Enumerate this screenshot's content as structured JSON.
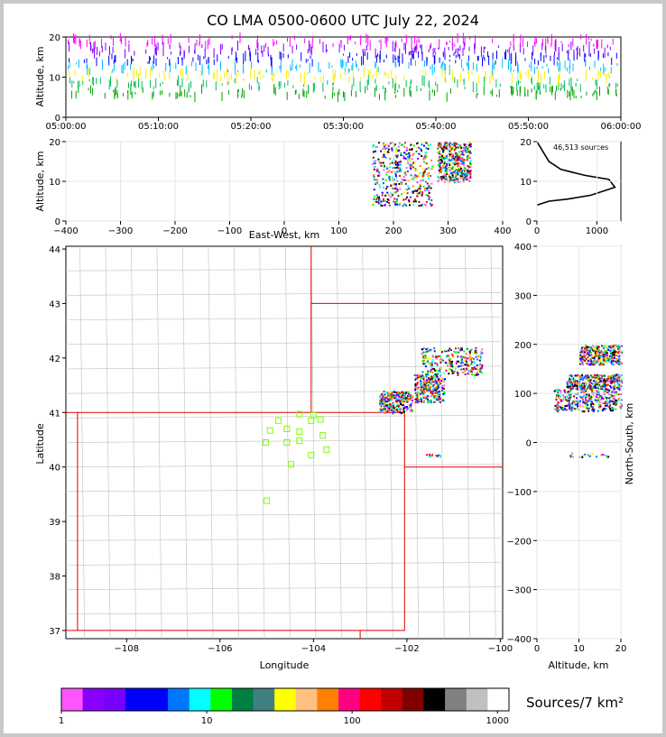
{
  "figure": {
    "title": "CO LMA 0500-0600 UTC July 22, 2024"
  },
  "chart_data": [
    {
      "id": "time-height",
      "type": "scatter",
      "title": "CO LMA 0500-0600 UTC July 22, 2024",
      "xlabel": "",
      "ylabel": "Altitude, km",
      "x_ticks": [
        "05:00:00",
        "05:10:00",
        "05:20:00",
        "05:30:00",
        "05:40:00",
        "05:50:00",
        "06:00:00"
      ],
      "xlim": [
        "05:00:00",
        "06:00:00"
      ],
      "ylim": [
        0,
        20
      ],
      "y_ticks": [
        0,
        10,
        20
      ],
      "description_of_density": "continuous sources between ~5 and 20 km across the whole hour"
    },
    {
      "id": "east-west-height",
      "type": "heatmap",
      "xlabel": "East-West, km",
      "ylabel": "Altitude, km",
      "xlim": [
        -400,
        400
      ],
      "x_ticks": [
        -400,
        -300,
        -200,
        -100,
        0,
        100,
        200,
        300,
        400
      ],
      "ylim": [
        0,
        20
      ],
      "y_ticks": [
        0,
        10,
        20
      ],
      "clusters": [
        {
          "x": [
            160,
            270
          ],
          "y": [
            4,
            20
          ]
        },
        {
          "x": [
            280,
            340
          ],
          "y": [
            10,
            20
          ]
        }
      ]
    },
    {
      "id": "altitude-histogram",
      "type": "line",
      "annotation": "46,513 sources",
      "xlim": [
        0,
        1400
      ],
      "x_ticks": [
        0,
        1000
      ],
      "ylim": [
        0,
        20
      ],
      "y_ticks": [
        0,
        10,
        20
      ],
      "profile": [
        [
          0,
          4
        ],
        [
          200,
          5
        ],
        [
          500,
          5.5
        ],
        [
          900,
          6.5
        ],
        [
          1300,
          8.5
        ],
        [
          1200,
          10.5
        ],
        [
          800,
          11.5
        ],
        [
          400,
          13
        ],
        [
          200,
          15
        ],
        [
          80,
          18
        ],
        [
          0,
          20
        ]
      ]
    },
    {
      "id": "plan-view",
      "type": "scatter",
      "xlabel": "Longitude",
      "ylabel": "Latitude",
      "xlim": [
        -109.3,
        -99.95
      ],
      "x_ticks": [
        -108,
        -106,
        -104,
        -102,
        -100
      ],
      "x_tick_labels": [
        "−108",
        "−106",
        "−104",
        "−102",
        "−100"
      ],
      "ylim": [
        36.85,
        44.05
      ],
      "y_ticks": [
        37,
        38,
        39,
        40,
        41,
        42,
        43,
        44
      ],
      "stations": [
        [
          -104.0,
          40.95
        ],
        [
          -104.05,
          40.85
        ],
        [
          -103.85,
          40.87
        ],
        [
          -104.3,
          40.97
        ],
        [
          -104.75,
          40.85
        ],
        [
          -104.57,
          40.7
        ],
        [
          -104.93,
          40.67
        ],
        [
          -104.3,
          40.65
        ],
        [
          -103.8,
          40.58
        ],
        [
          -104.3,
          40.48
        ],
        [
          -104.57,
          40.45
        ],
        [
          -105.02,
          40.45
        ],
        [
          -103.72,
          40.32
        ],
        [
          -104.05,
          40.22
        ],
        [
          -104.48,
          40.05
        ],
        [
          -105.0,
          39.38
        ]
      ],
      "lightning_regions": [
        {
          "lon": [
            -102.6,
            -101.9
          ],
          "lat": [
            41.0,
            41.4
          ]
        },
        {
          "lon": [
            -101.85,
            -101.2
          ],
          "lat": [
            41.2,
            41.7
          ]
        },
        {
          "lon": [
            -101.7,
            -100.4
          ],
          "lat": [
            41.7,
            42.2
          ]
        },
        {
          "lon": [
            -101.6,
            -101.3
          ],
          "lat": [
            40.2,
            40.25
          ]
        }
      ]
    },
    {
      "id": "north-south-height",
      "type": "heatmap",
      "xlabel": "Altitude, km",
      "ylabel": "North-South, km",
      "xlim": [
        0,
        20
      ],
      "x_ticks": [
        0,
        10,
        20
      ],
      "ylim": [
        -400,
        400
      ],
      "y_ticks": [
        -400,
        -300,
        -200,
        -100,
        0,
        100,
        200,
        300,
        400
      ],
      "y_tick_labels": [
        "−400",
        "−300",
        "−200",
        "−100",
        "0",
        "100",
        "200",
        "300",
        "400"
      ],
      "clusters": [
        {
          "y": [
            65,
            110
          ],
          "x": [
            4,
            20
          ]
        },
        {
          "y": [
            110,
            140
          ],
          "x": [
            7,
            20
          ]
        },
        {
          "y": [
            160,
            200
          ],
          "x": [
            10,
            20
          ]
        },
        {
          "y": [
            -30,
            -20
          ],
          "x": [
            7,
            17
          ]
        }
      ]
    }
  ],
  "colorbar": {
    "label": "Sources/7 km²",
    "tick_labels": [
      "1",
      "10",
      "100",
      "1000"
    ],
    "colors": [
      "#ff55ff",
      "#8800ff",
      "#7700ff",
      "#0000ff",
      "#0000ff",
      "#0077ff",
      "#00ffff",
      "#00ff00",
      "#008040",
      "#408080",
      "#ffff00",
      "#ffc080",
      "#ff8000",
      "#ff0080",
      "#ff0000",
      "#c00000",
      "#800000",
      "#000000",
      "#808080",
      "#c0c0c0",
      "#ffffff"
    ]
  },
  "altitude_colors": [
    "#00a000",
    "#00c060",
    "#ffee00",
    "#00c0ff",
    "#0000ff",
    "#8000ff",
    "#ff00ff"
  ]
}
